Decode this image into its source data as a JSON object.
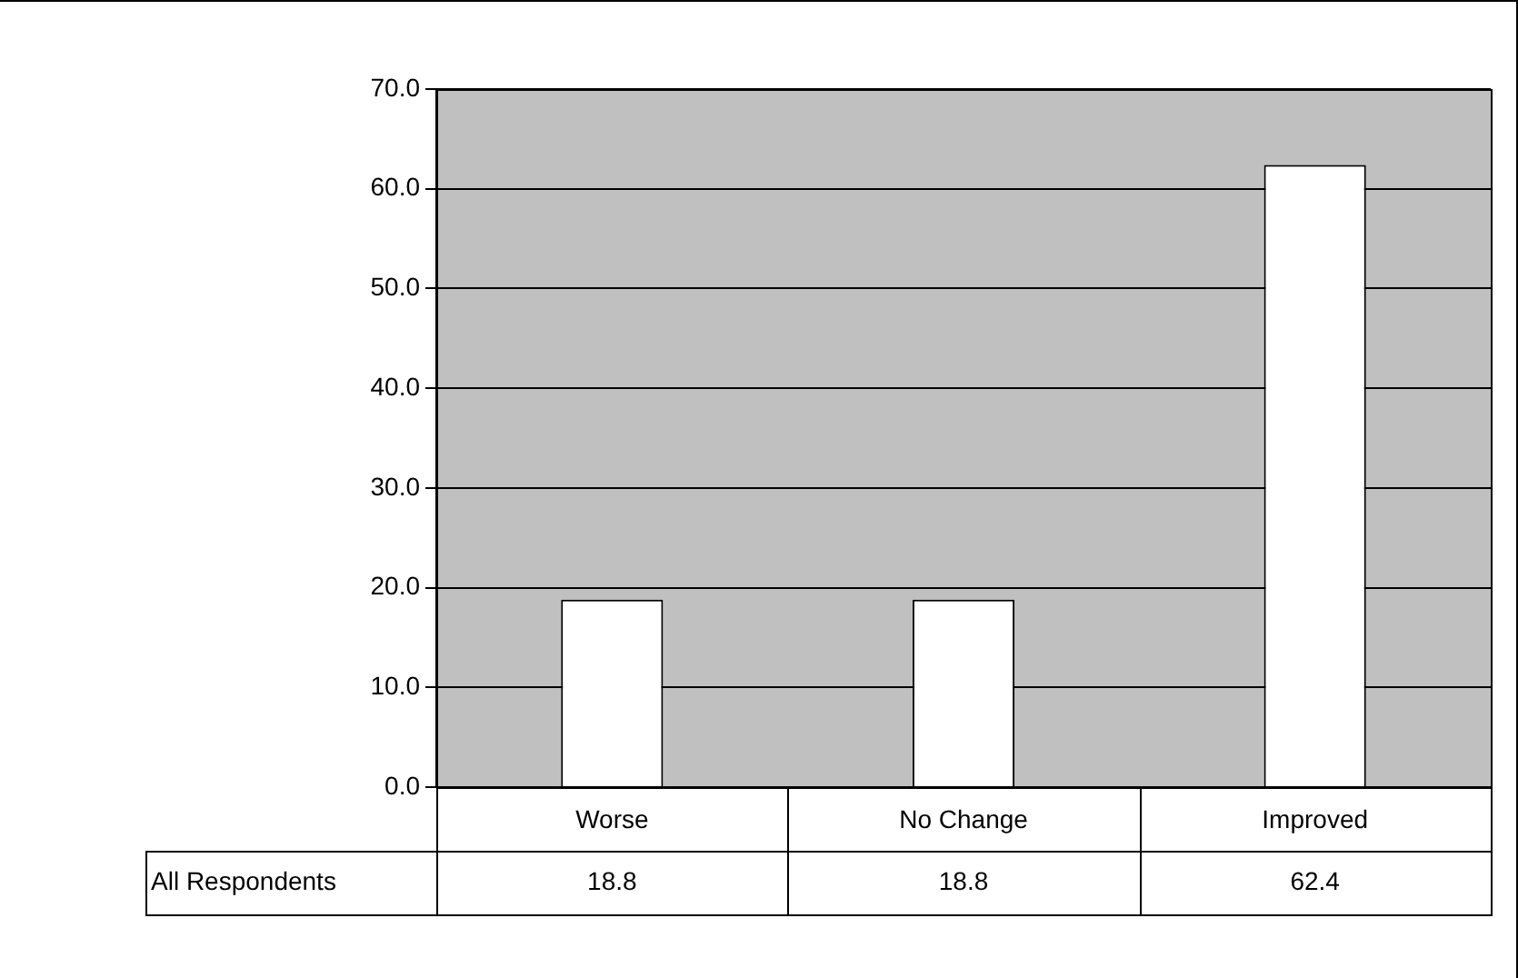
{
  "chart_data": {
    "type": "bar",
    "categories": [
      "Worse",
      "No Change",
      "Improved"
    ],
    "series": [
      {
        "name": "All Respondents",
        "color": "#ffffff",
        "values": [
          18.8,
          18.8,
          62.4
        ]
      }
    ],
    "ylim": [
      0,
      70
    ],
    "yticks": [
      {
        "value": 0,
        "label": "0.0"
      },
      {
        "value": 10,
        "label": "10.0"
      },
      {
        "value": 20,
        "label": "20.0"
      },
      {
        "value": 30,
        "label": "30.0"
      },
      {
        "value": 40,
        "label": "40.0"
      },
      {
        "value": 50,
        "label": "50.0"
      },
      {
        "value": 60,
        "label": "60.0"
      },
      {
        "value": 70,
        "label": "70.0"
      }
    ],
    "grid": "y",
    "legend": false,
    "data_labels": true
  }
}
